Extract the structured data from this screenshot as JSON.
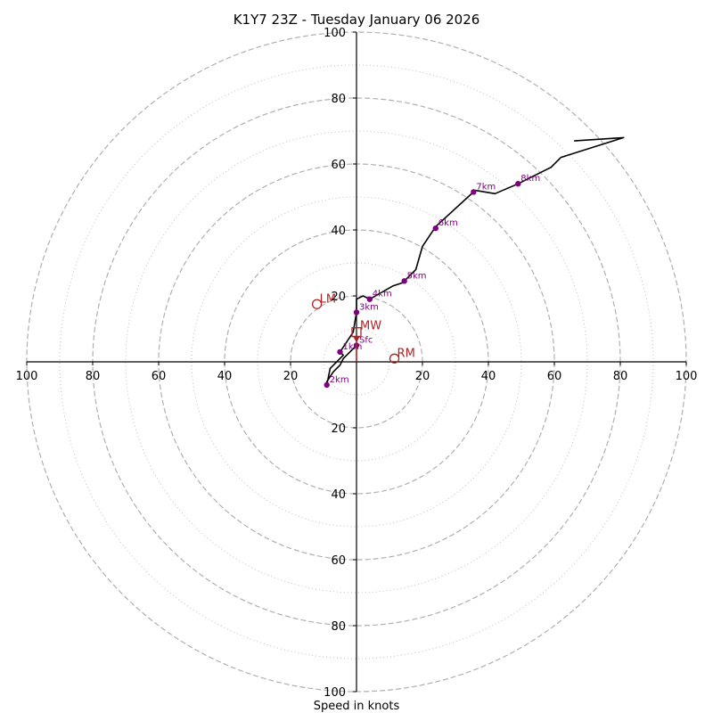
{
  "chart_data": {
    "type": "hodograph",
    "title": "K1Y7 23Z - Tuesday January 06 2026",
    "xlabel": "Speed in knots",
    "xlim": [
      -100,
      100
    ],
    "ylim": [
      -100,
      100
    ],
    "ring_major": [
      20,
      40,
      60,
      80,
      100
    ],
    "ring_minor": [
      10,
      30,
      50,
      70,
      90
    ],
    "x_ticks": [
      {
        "value": -100,
        "label": "100"
      },
      {
        "value": -80,
        "label": "80"
      },
      {
        "value": -60,
        "label": "60"
      },
      {
        "value": -40,
        "label": "40"
      },
      {
        "value": -20,
        "label": "20"
      },
      {
        "value": 20,
        "label": "20"
      },
      {
        "value": 40,
        "label": "40"
      },
      {
        "value": 60,
        "label": "60"
      },
      {
        "value": 80,
        "label": "80"
      },
      {
        "value": 100,
        "label": "100"
      }
    ],
    "y_ticks": [
      {
        "value": 100,
        "label": "100"
      },
      {
        "value": 80,
        "label": "80"
      },
      {
        "value": 60,
        "label": "60"
      },
      {
        "value": 40,
        "label": "40"
      },
      {
        "value": 20,
        "label": "20"
      },
      {
        "value": -20,
        "label": "20"
      },
      {
        "value": -40,
        "label": "40"
      },
      {
        "value": -60,
        "label": "60"
      },
      {
        "value": -80,
        "label": "80"
      },
      {
        "value": -100,
        "label": "100"
      }
    ],
    "trace": [
      [
        0,
        5
      ],
      [
        -2,
        3
      ],
      [
        -4,
        1
      ],
      [
        -5,
        -1
      ],
      [
        -7,
        -3
      ],
      [
        -9,
        -6
      ],
      [
        -9,
        -7
      ],
      [
        -8,
        -2
      ],
      [
        -4,
        2
      ],
      [
        -5,
        3
      ],
      [
        -3,
        6
      ],
      [
        -1,
        9
      ],
      [
        0,
        15
      ],
      [
        0,
        19
      ],
      [
        2,
        20
      ],
      [
        4,
        19
      ],
      [
        11,
        23
      ],
      [
        14,
        24
      ],
      [
        18,
        28
      ],
      [
        20,
        35
      ],
      [
        22,
        38
      ],
      [
        24,
        41
      ],
      [
        36,
        52
      ],
      [
        42,
        51
      ],
      [
        49,
        54
      ],
      [
        59,
        59
      ],
      [
        62,
        62
      ],
      [
        81,
        68
      ],
      [
        66,
        67
      ]
    ],
    "height_markers": [
      {
        "label": "Sfc",
        "u": 0,
        "v": 5
      },
      {
        "label": "1km",
        "u": -5,
        "v": 3
      },
      {
        "label": "2km",
        "u": -9,
        "v": -7
      },
      {
        "label": "3km",
        "u": 0,
        "v": 15
      },
      {
        "label": "4km",
        "u": 4,
        "v": 19
      },
      {
        "label": "5km",
        "u": 14.5,
        "v": 24.5
      },
      {
        "label": "6km",
        "u": 24,
        "v": 40.5
      },
      {
        "label": "7km",
        "u": 35.5,
        "v": 51.5
      },
      {
        "label": "8km",
        "u": 49,
        "v": 54
      }
    ],
    "storm_motion": [
      {
        "label": "LM",
        "u": -12,
        "v": 17.5
      },
      {
        "label": "RM",
        "u": 11.5,
        "v": 1
      },
      {
        "label": "MW",
        "u": 0,
        "v": 9
      }
    ],
    "colors": {
      "trace": "#000000",
      "height_marker": "#800080",
      "storm_motion": "#b22222",
      "grid": "#b0b0b0"
    }
  }
}
